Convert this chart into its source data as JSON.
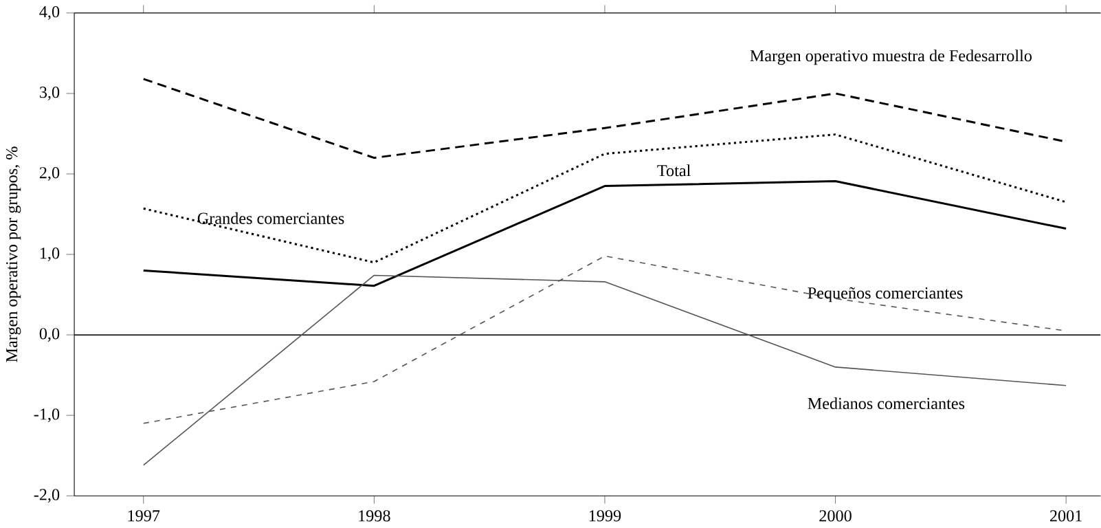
{
  "chart_data": {
    "type": "line",
    "ylabel": "Margen operativo por grupos, %",
    "categories": [
      "1997",
      "1998",
      "1999",
      "2000",
      "2001"
    ],
    "series": [
      {
        "name": "Margen operativo muestra de Fedesarrollo",
        "color": "#000000",
        "line_style": "dashed",
        "values": [
          3.18,
          2.2,
          2.57,
          3.0,
          2.4
        ]
      },
      {
        "name": "Grandes comerciantes",
        "color": "#000000",
        "line_style": "dotted",
        "values": [
          1.57,
          0.9,
          2.25,
          2.49,
          1.65
        ]
      },
      {
        "name": "Total",
        "color": "#000000",
        "line_style": "solid",
        "values": [
          0.8,
          0.61,
          1.85,
          1.91,
          1.32
        ]
      },
      {
        "name": "Pequeños comerciantes",
        "color": "#555555",
        "line_style": "dashed",
        "values": [
          -1.1,
          -0.58,
          0.98,
          0.45,
          0.05
        ]
      },
      {
        "name": "Medianos comerciantes",
        "color": "#555555",
        "line_style": "solid",
        "values": [
          -1.62,
          0.74,
          0.66,
          -0.4,
          -0.63
        ]
      }
    ],
    "ylim": [
      -2,
      4
    ],
    "yticks": [
      {
        "value": -2,
        "label": "-2,0"
      },
      {
        "value": -1,
        "label": "-1,0"
      },
      {
        "value": 0,
        "label": "0,0"
      },
      {
        "value": 1,
        "label": "1,0"
      },
      {
        "value": 2,
        "label": "2,0"
      },
      {
        "value": 3,
        "label": "3,0"
      },
      {
        "value": 4,
        "label": "4,0"
      }
    ],
    "ref_lines": [
      {
        "axis": "y",
        "value": 0,
        "color": "#000000"
      }
    ],
    "grid": false,
    "legend": false,
    "marker": "none"
  }
}
